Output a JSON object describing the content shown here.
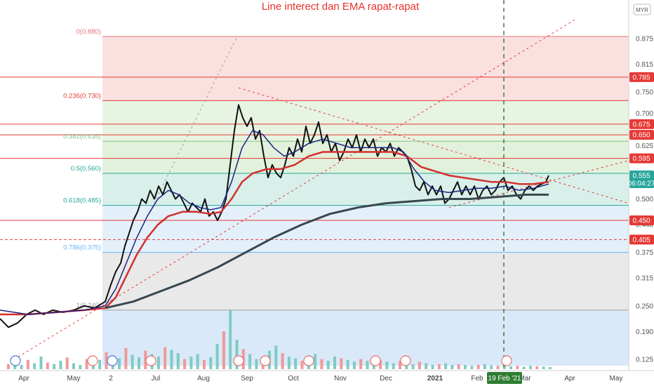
{
  "chart_data": {
    "type": "line",
    "title": "Line interect dan EMA rapat-rapat",
    "currency": "MYR",
    "y_range": [
      0.11,
      0.91
    ],
    "y_ticks": [
      0.875,
      0.815,
      0.75,
      0.7,
      0.625,
      0.5,
      0.44,
      0.375,
      0.315,
      0.25,
      0.19,
      0.125
    ],
    "x_ticks": [
      "Apr",
      "May",
      "2",
      "Jul",
      "Aug",
      "Sep",
      "Oct",
      "Nov",
      "Dec",
      "2021",
      "Feb",
      "Mar",
      "Apr",
      "May"
    ],
    "highlight_date": "19 Feb '21",
    "price_tags": [
      {
        "label": "0.785",
        "value": 0.785,
        "color": "#e53935"
      },
      {
        "label": "0.675",
        "value": 0.675,
        "color": "#e53935"
      },
      {
        "label": "0.650",
        "value": 0.65,
        "color": "#e53935"
      },
      {
        "label": "0.595",
        "value": 0.595,
        "color": "#e53935"
      },
      {
        "label": "0.555",
        "value": 0.555,
        "color": "#26a69a"
      },
      {
        "label": "06:04:27",
        "value": 0.537,
        "color": "#26a69a"
      },
      {
        "label": "0.450",
        "value": 0.45,
        "color": "#e53935"
      },
      {
        "label": "0.405",
        "value": 0.405,
        "color": "#e53935"
      }
    ],
    "fib_levels": [
      {
        "label": "0(0.880)",
        "value": 0.88,
        "color": "#e57373"
      },
      {
        "label": "0.236(0.730)",
        "value": 0.73,
        "color": "#e53935"
      },
      {
        "label": "0.382(0.635)",
        "value": 0.635,
        "color": "#81c784"
      },
      {
        "label": "0.5(0.560)",
        "value": 0.56,
        "color": "#26a69a"
      },
      {
        "label": "0.618(0.485)",
        "value": 0.485,
        "color": "#26a69a"
      },
      {
        "label": "0.786(0.375)",
        "value": 0.375,
        "color": "#64b5f6"
      },
      {
        "label": "1(0.240)",
        "value": 0.24,
        "color": "#9e9e9e"
      }
    ],
    "series": [
      {
        "color": "#111111",
        "weight": 2,
        "points": [
          [
            0,
            0.22
          ],
          [
            12,
            0.2
          ],
          [
            25,
            0.21
          ],
          [
            38,
            0.23
          ],
          [
            50,
            0.24
          ],
          [
            62,
            0.23
          ],
          [
            75,
            0.24
          ],
          [
            90,
            0.235
          ],
          [
            105,
            0.24
          ],
          [
            120,
            0.25
          ],
          [
            135,
            0.245
          ],
          [
            150,
            0.26
          ],
          [
            158,
            0.3
          ],
          [
            165,
            0.33
          ],
          [
            172,
            0.35
          ],
          [
            178,
            0.39
          ],
          [
            184,
            0.42
          ],
          [
            190,
            0.45
          ],
          [
            196,
            0.47
          ],
          [
            202,
            0.5
          ],
          [
            208,
            0.49
          ],
          [
            214,
            0.52
          ],
          [
            220,
            0.5
          ],
          [
            226,
            0.53
          ],
          [
            232,
            0.51
          ],
          [
            238,
            0.54
          ],
          [
            244,
            0.52
          ],
          [
            250,
            0.5
          ],
          [
            256,
            0.51
          ],
          [
            262,
            0.49
          ],
          [
            268,
            0.47
          ],
          [
            274,
            0.49
          ],
          [
            280,
            0.48
          ],
          [
            286,
            0.47
          ],
          [
            292,
            0.5
          ],
          [
            298,
            0.46
          ],
          [
            304,
            0.47
          ],
          [
            310,
            0.45
          ],
          [
            316,
            0.47
          ],
          [
            322,
            0.5
          ],
          [
            328,
            0.58
          ],
          [
            334,
            0.66
          ],
          [
            340,
            0.72
          ],
          [
            346,
            0.69
          ],
          [
            352,
            0.67
          ],
          [
            358,
            0.69
          ],
          [
            364,
            0.64
          ],
          [
            370,
            0.66
          ],
          [
            376,
            0.6
          ],
          [
            382,
            0.55
          ],
          [
            388,
            0.58
          ],
          [
            394,
            0.56
          ],
          [
            400,
            0.55
          ],
          [
            406,
            0.58
          ],
          [
            412,
            0.62
          ],
          [
            418,
            0.6
          ],
          [
            424,
            0.64
          ],
          [
            430,
            0.61
          ],
          [
            436,
            0.67
          ],
          [
            442,
            0.63
          ],
          [
            448,
            0.65
          ],
          [
            454,
            0.68
          ],
          [
            460,
            0.63
          ],
          [
            466,
            0.65
          ],
          [
            472,
            0.61
          ],
          [
            478,
            0.63
          ],
          [
            484,
            0.59
          ],
          [
            490,
            0.61
          ],
          [
            496,
            0.64
          ],
          [
            502,
            0.62
          ],
          [
            508,
            0.65
          ],
          [
            514,
            0.61
          ],
          [
            520,
            0.64
          ],
          [
            526,
            0.62
          ],
          [
            532,
            0.64
          ],
          [
            538,
            0.6
          ],
          [
            544,
            0.62
          ],
          [
            550,
            0.61
          ],
          [
            556,
            0.63
          ],
          [
            562,
            0.6
          ],
          [
            568,
            0.62
          ],
          [
            574,
            0.61
          ],
          [
            580,
            0.6
          ],
          [
            586,
            0.57
          ],
          [
            592,
            0.53
          ],
          [
            598,
            0.52
          ],
          [
            604,
            0.54
          ],
          [
            610,
            0.51
          ],
          [
            616,
            0.53
          ],
          [
            622,
            0.51
          ],
          [
            628,
            0.53
          ],
          [
            634,
            0.49
          ],
          [
            640,
            0.5
          ],
          [
            646,
            0.52
          ],
          [
            652,
            0.54
          ],
          [
            658,
            0.51
          ],
          [
            664,
            0.53
          ],
          [
            670,
            0.51
          ],
          [
            676,
            0.53
          ],
          [
            682,
            0.5
          ],
          [
            688,
            0.52
          ],
          [
            694,
            0.53
          ],
          [
            700,
            0.51
          ],
          [
            706,
            0.52
          ],
          [
            712,
            0.54
          ],
          [
            718,
            0.55
          ],
          [
            724,
            0.52
          ],
          [
            730,
            0.53
          ],
          [
            736,
            0.51
          ],
          [
            742,
            0.5
          ],
          [
            748,
            0.52
          ],
          [
            754,
            0.53
          ],
          [
            760,
            0.52
          ],
          [
            766,
            0.53
          ],
          [
            772,
            0.535
          ],
          [
            778,
            0.54
          ],
          [
            782,
            0.555
          ]
        ]
      },
      {
        "color": "#d32f2f",
        "weight": 2.5,
        "points": [
          [
            0,
            0.23
          ],
          [
            40,
            0.23
          ],
          [
            80,
            0.235
          ],
          [
            120,
            0.24
          ],
          [
            150,
            0.245
          ],
          [
            165,
            0.27
          ],
          [
            180,
            0.32
          ],
          [
            195,
            0.37
          ],
          [
            210,
            0.41
          ],
          [
            225,
            0.44
          ],
          [
            240,
            0.46
          ],
          [
            260,
            0.47
          ],
          [
            280,
            0.47
          ],
          [
            300,
            0.465
          ],
          [
            315,
            0.47
          ],
          [
            330,
            0.5
          ],
          [
            345,
            0.54
          ],
          [
            360,
            0.56
          ],
          [
            380,
            0.57
          ],
          [
            400,
            0.57
          ],
          [
            420,
            0.58
          ],
          [
            440,
            0.6
          ],
          [
            460,
            0.61
          ],
          [
            480,
            0.61
          ],
          [
            500,
            0.61
          ],
          [
            520,
            0.61
          ],
          [
            540,
            0.61
          ],
          [
            560,
            0.61
          ],
          [
            580,
            0.6
          ],
          [
            600,
            0.575
          ],
          [
            620,
            0.565
          ],
          [
            640,
            0.555
          ],
          [
            660,
            0.55
          ],
          [
            680,
            0.545
          ],
          [
            700,
            0.54
          ],
          [
            720,
            0.54
          ],
          [
            740,
            0.535
          ],
          [
            760,
            0.535
          ],
          [
            782,
            0.54
          ]
        ]
      },
      {
        "color": "#1a237e",
        "weight": 1.5,
        "points": [
          [
            0,
            0.24
          ],
          [
            40,
            0.23
          ],
          [
            80,
            0.235
          ],
          [
            120,
            0.24
          ],
          [
            150,
            0.25
          ],
          [
            165,
            0.29
          ],
          [
            180,
            0.35
          ],
          [
            195,
            0.41
          ],
          [
            210,
            0.46
          ],
          [
            225,
            0.5
          ],
          [
            240,
            0.52
          ],
          [
            255,
            0.51
          ],
          [
            270,
            0.49
          ],
          [
            285,
            0.48
          ],
          [
            300,
            0.475
          ],
          [
            315,
            0.48
          ],
          [
            330,
            0.54
          ],
          [
            345,
            0.62
          ],
          [
            360,
            0.66
          ],
          [
            375,
            0.65
          ],
          [
            390,
            0.62
          ],
          [
            405,
            0.6
          ],
          [
            420,
            0.61
          ],
          [
            440,
            0.63
          ],
          [
            460,
            0.64
          ],
          [
            480,
            0.63
          ],
          [
            500,
            0.62
          ],
          [
            520,
            0.62
          ],
          [
            540,
            0.62
          ],
          [
            560,
            0.62
          ],
          [
            575,
            0.61
          ],
          [
            590,
            0.57
          ],
          [
            605,
            0.54
          ],
          [
            620,
            0.52
          ],
          [
            640,
            0.515
          ],
          [
            660,
            0.52
          ],
          [
            680,
            0.525
          ],
          [
            700,
            0.525
          ],
          [
            720,
            0.53
          ],
          [
            740,
            0.52
          ],
          [
            760,
            0.525
          ],
          [
            782,
            0.535
          ]
        ]
      },
      {
        "color": "#37474f",
        "weight": 3,
        "points": [
          [
            150,
            0.245
          ],
          [
            190,
            0.26
          ],
          [
            230,
            0.285
          ],
          [
            270,
            0.31
          ],
          [
            310,
            0.34
          ],
          [
            350,
            0.375
          ],
          [
            390,
            0.41
          ],
          [
            430,
            0.44
          ],
          [
            470,
            0.465
          ],
          [
            510,
            0.48
          ],
          [
            550,
            0.49
          ],
          [
            590,
            0.495
          ],
          [
            630,
            0.5
          ],
          [
            670,
            0.5
          ],
          [
            710,
            0.505
          ],
          [
            750,
            0.51
          ],
          [
            782,
            0.51
          ]
        ]
      }
    ],
    "volume": [
      12,
      18,
      10,
      22,
      14,
      30,
      16,
      12,
      20,
      28,
      14,
      10,
      24,
      18,
      22,
      40,
      30,
      26,
      50,
      34,
      28,
      44,
      36,
      30,
      52,
      46,
      38,
      24,
      30,
      36,
      22,
      28,
      60,
      90,
      140,
      70,
      48,
      36,
      24,
      30,
      44,
      56,
      38,
      30,
      26,
      20,
      28,
      36,
      24,
      20,
      30,
      26,
      22,
      18,
      24,
      20,
      16,
      22,
      18,
      14,
      20,
      16,
      12,
      18,
      14,
      10,
      12,
      14,
      10,
      12,
      10,
      8,
      10,
      12,
      9,
      8,
      10,
      7,
      8,
      6,
      8,
      7,
      6,
      5
    ]
  }
}
